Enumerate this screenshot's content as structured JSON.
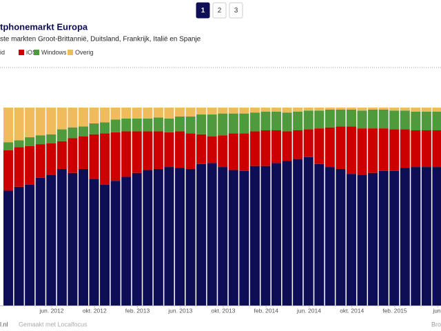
{
  "pagination": [
    "1",
    "2",
    "3"
  ],
  "chart_data": {
    "type": "stacked_bar",
    "title": "tphonemarkt Europa",
    "subtitle": "ste markten Groot-Brittannië, Duitsland, Frankrijk, Italië en Spanje",
    "categories": [
      null,
      null,
      null,
      null,
      "jun. 2012",
      null,
      null,
      null,
      "okt. 2012",
      null,
      null,
      null,
      "feb. 2013",
      null,
      null,
      null,
      "jun. 2013",
      null,
      null,
      null,
      "okt. 2013",
      null,
      null,
      null,
      "feb. 2014",
      null,
      null,
      null,
      "jun. 2014",
      null,
      null,
      null,
      "okt. 2014",
      null,
      null,
      null,
      "feb. 2015",
      null,
      null,
      null,
      "jun."
    ],
    "series": [
      {
        "name": "id",
        "color": "#0e0e57",
        "values": [
          58,
          60,
          61,
          64.5,
          66,
          69,
          67,
          69,
          64,
          61,
          63,
          65,
          67,
          68.5,
          69,
          70,
          69.5,
          69,
          71.5,
          72,
          70,
          68.5,
          68,
          70.5,
          70.5,
          72,
          73,
          74,
          75,
          71.5,
          70,
          69,
          66.5,
          66,
          67,
          68,
          68,
          69.5,
          70,
          70,
          70
        ]
      },
      {
        "name": "iOS",
        "color": "#cc0000",
        "values": [
          20.5,
          20,
          19.5,
          17,
          16,
          14,
          17.5,
          16.5,
          22.5,
          26,
          24.5,
          23,
          21,
          19.5,
          19,
          17.5,
          18.5,
          18,
          15,
          13.5,
          16,
          18.5,
          19,
          17.5,
          18,
          16.5,
          15,
          14.5,
          14,
          18,
          20,
          21.5,
          24,
          23.5,
          22.5,
          21.5,
          21,
          19.5,
          18.5,
          18.5,
          18.5
        ]
      },
      {
        "name": "Windows",
        "color": "#4f9a3c",
        "values": [
          4,
          3.5,
          4.5,
          4.5,
          4.5,
          6,
          5.5,
          5,
          5.5,
          5.5,
          6.5,
          6.5,
          6.5,
          6.5,
          7,
          7,
          7.5,
          8.5,
          10,
          11,
          11,
          10,
          10,
          9.5,
          9.5,
          9.5,
          9.5,
          9.5,
          9.5,
          9,
          9,
          8.5,
          8.5,
          9,
          9.5,
          9.5,
          9.5,
          9.5,
          9.5,
          9.5,
          9.5
        ]
      },
      {
        "name": "Overig",
        "color": "#f0bb5c",
        "values": [
          17.5,
          16.5,
          15,
          14,
          13.5,
          11,
          10,
          9.5,
          8,
          7.5,
          6,
          5.5,
          5.5,
          5.5,
          5,
          5.5,
          4.5,
          4.5,
          3.5,
          3.5,
          3,
          3,
          3,
          2.5,
          2,
          2,
          2.5,
          2,
          1.5,
          1.5,
          1,
          1,
          1,
          1.5,
          1,
          1,
          1.5,
          1.5,
          2,
          2,
          2
        ]
      }
    ],
    "ylim": [
      0,
      100
    ]
  },
  "footer": {
    "source": "l.nl",
    "made_with": "Gemaakt met Localfocus",
    "right": "Bro"
  }
}
